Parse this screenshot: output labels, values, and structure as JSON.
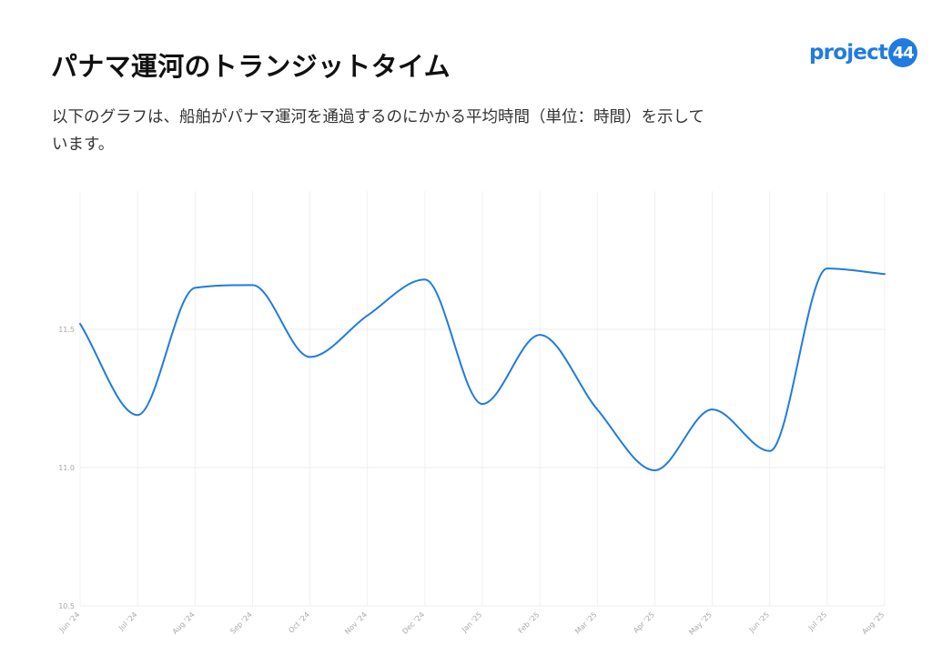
{
  "header": {
    "title": "パナマ運河のトランジットタイム",
    "subtitle": "以下のグラフは、船舶がパナマ運河を通過するのにかかる平均時間（単位：時間）を示しています。"
  },
  "logo": {
    "text": "project",
    "badge": "44",
    "color": "#1f7be0"
  },
  "chart_data": {
    "type": "line",
    "title": "",
    "xlabel": "",
    "ylabel": "",
    "categories": [
      "Jun '24",
      "Jul '24",
      "Aug '24",
      "Sep '24",
      "Oct '24",
      "Nov '24",
      "Dec '24",
      "Jan '25",
      "Feb '25",
      "Mar '25",
      "Apr '25",
      "May '25",
      "Jun '25",
      "Jul '25",
      "Aug '25"
    ],
    "series": [
      {
        "values": [
          11.52,
          11.19,
          11.65,
          11.66,
          11.4,
          11.55,
          11.68,
          11.23,
          11.48,
          11.21,
          10.99,
          11.21,
          11.06,
          11.72,
          11.7
        ],
        "color": "#1f7be0"
      }
    ],
    "ylim": [
      10.5,
      12.0
    ],
    "yticks": [
      "10.5",
      "11.0",
      "11.5"
    ],
    "grid": true,
    "legend": "none"
  }
}
